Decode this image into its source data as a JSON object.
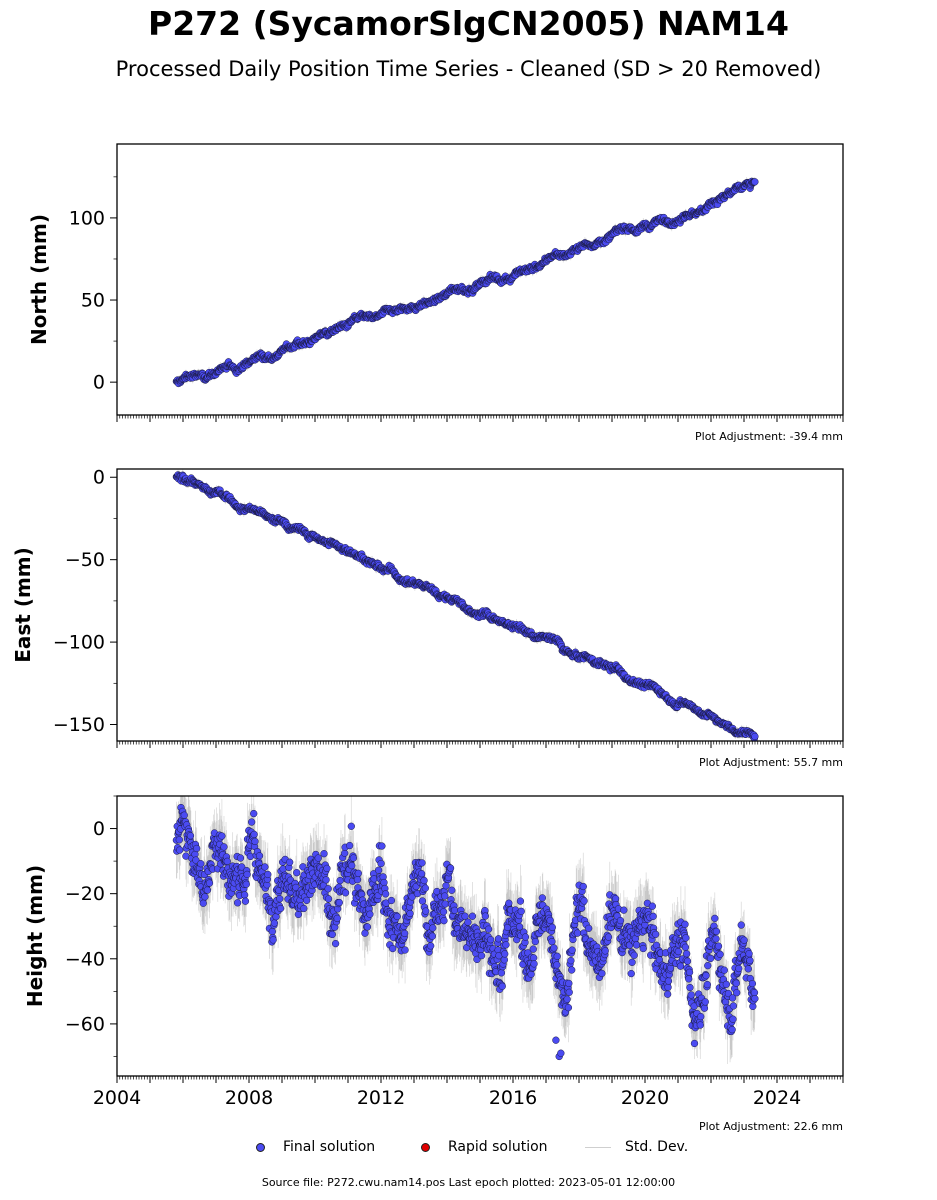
{
  "title": "P272 (SycamorSlgCN2005) NAM14",
  "subtitle": "Processed Daily Position Time Series - Cleaned (SD > 20 Removed)",
  "source_text": "Source file: P272.cwu.nam14.pos  Last epoch plotted: 2023-05-01 12:00:00",
  "legend": [
    {
      "label": "Final solution",
      "color": "#4b4bf2",
      "marker": "dot"
    },
    {
      "label": "Rapid solution",
      "color": "#e00000",
      "marker": "dot"
    },
    {
      "label": "Std. Dev.",
      "color": "#cfcfcf",
      "marker": "line"
    }
  ],
  "colors": {
    "final": "#4b4bf2",
    "edge": "#1a1a40",
    "stddev": "#9a9a9a"
  },
  "chart_data": [
    {
      "type": "scatter",
      "component": "north",
      "ylabel": "North (mm)",
      "adjustment": "Plot Adjustment: -39.4 mm",
      "xlim": [
        2004,
        2026
      ],
      "ylim": [
        -20,
        145
      ],
      "yticks": [
        0,
        50,
        100
      ],
      "x_start": 2005.8,
      "x_end": 2023.33,
      "trend_start": 0,
      "trend_end": 118,
      "wiggle": 2.5,
      "scatter": 1.2,
      "series": [
        {
          "name": "Final solution",
          "points": [
            [
              2005.8,
              0
            ],
            [
              2007,
              8
            ],
            [
              2008,
              11
            ],
            [
              2009,
              20
            ],
            [
              2010,
              27
            ],
            [
              2011,
              33
            ],
            [
              2012,
              38
            ],
            [
              2013,
              45
            ],
            [
              2014,
              53
            ],
            [
              2015,
              60
            ],
            [
              2016,
              66
            ],
            [
              2017,
              73
            ],
            [
              2018,
              82
            ],
            [
              2019,
              88
            ],
            [
              2020,
              94
            ],
            [
              2021,
              101
            ],
            [
              2022,
              109
            ],
            [
              2023.33,
              120
            ]
          ]
        }
      ]
    },
    {
      "type": "scatter",
      "component": "east",
      "ylabel": "East (mm)",
      "adjustment": "Plot Adjustment: 55.7 mm",
      "xlim": [
        2004,
        2026
      ],
      "ylim": [
        -160,
        5
      ],
      "yticks": [
        0,
        -50,
        -100,
        -150
      ],
      "x_start": 2005.8,
      "x_end": 2023.33,
      "trend_start": 0,
      "trend_end": -157,
      "wiggle": 2.5,
      "scatter": 1.2,
      "series": [
        {
          "name": "Final solution",
          "points": [
            [
              2005.8,
              0
            ],
            [
              2007,
              -10
            ],
            [
              2008,
              -19
            ],
            [
              2009,
              -29
            ],
            [
              2010,
              -37
            ],
            [
              2011,
              -45
            ],
            [
              2012,
              -54
            ],
            [
              2013,
              -64
            ],
            [
              2014,
              -73
            ],
            [
              2015,
              -84
            ],
            [
              2016,
              -90
            ],
            [
              2017,
              -98
            ],
            [
              2018,
              -108
            ],
            [
              2019,
              -117
            ],
            [
              2020,
              -127
            ],
            [
              2021,
              -136
            ],
            [
              2022,
              -146
            ],
            [
              2023.33,
              -157
            ]
          ]
        }
      ]
    },
    {
      "type": "scatter",
      "component": "height",
      "ylabel": "Height (mm)",
      "adjustment": "Plot Adjustment: 22.6 mm",
      "xlim": [
        2004,
        2026
      ],
      "ylim": [
        -76,
        10
      ],
      "yticks": [
        0,
        -20,
        -40,
        -60
      ],
      "xticks": [
        2004,
        2008,
        2012,
        2016,
        2020,
        2024
      ],
      "x_start": 2005.8,
      "x_end": 2023.33,
      "trend_start": -6,
      "trend_end": -47,
      "wiggle": 9,
      "scatter": 5,
      "series": [
        {
          "name": "Final solution",
          "points": [
            [
              2005.8,
              -6
            ],
            [
              2007,
              -9
            ],
            [
              2008,
              -11
            ],
            [
              2009,
              -15
            ],
            [
              2010,
              -16
            ],
            [
              2011,
              -20
            ],
            [
              2012,
              -22
            ],
            [
              2013,
              -25
            ],
            [
              2014,
              -27
            ],
            [
              2015,
              -29
            ],
            [
              2016,
              -32
            ],
            [
              2017,
              -34
            ],
            [
              2017.4,
              -70
            ],
            [
              2018,
              -37
            ],
            [
              2019,
              -38
            ],
            [
              2020,
              -40
            ],
            [
              2021,
              -43
            ],
            [
              2021.5,
              -66
            ],
            [
              2022,
              -45
            ],
            [
              2023.33,
              -47
            ]
          ]
        }
      ]
    }
  ]
}
